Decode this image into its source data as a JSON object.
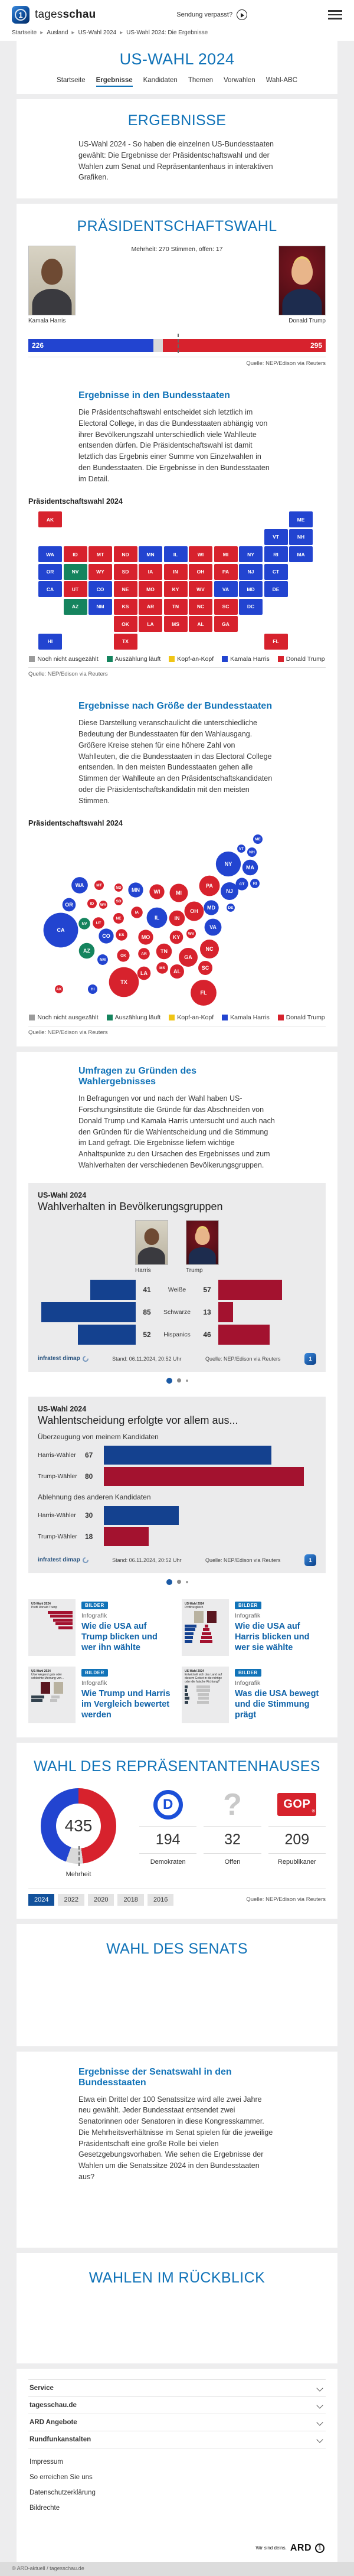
{
  "header": {
    "logo_light": "tages",
    "logo_bold": "schau",
    "broadcast_label": "Sendung verpasst?"
  },
  "breadcrumb": [
    "Startseite",
    "Ausland",
    "US-Wahl 2024",
    "US-Wahl 2024: Die Ergebnisse"
  ],
  "hub": {
    "title": "US-WAHL 2024",
    "tabs": [
      {
        "label": "Startseite",
        "active": false
      },
      {
        "label": "Ergebnisse",
        "active": true
      },
      {
        "label": "Kandidaten",
        "active": false
      },
      {
        "label": "Themen",
        "active": false
      },
      {
        "label": "Vorwahlen",
        "active": false
      },
      {
        "label": "Wahl-ABC",
        "active": false
      }
    ]
  },
  "intro": {
    "heading": "ERGEBNISSE",
    "text": "US-Wahl 2024 - So haben die einzelnen US-Bundesstaaten gewählt: Die Ergebnisse der Präsidentschaftswahl und der Wahlen zum Senat und Repräsentantenhaus in interaktiven Grafiken."
  },
  "sources": {
    "nep": "Quelle: NEP/Edison via Reuters",
    "stand": "Stand:  06.11.2024, 20:52 Uhr",
    "brand": "infratest dimap"
  },
  "colors": {
    "harris_blue": "#2244d0",
    "trump_red": "#d7222d",
    "counting_green": "#15845e",
    "tossup_yellow": "#f0c515",
    "uncounted_gray": "#9b9b9b",
    "open_gray": "#d9d9d9",
    "dark_blue": "#14418f",
    "dark_red": "#a3122f",
    "accent_blue": "#1173b8"
  },
  "president": {
    "heading": "PRÄSIDENTSCHAFTSWAHL",
    "majority_note": "Mehrheit: 270 Stimmen, offen: 17",
    "harris": {
      "name": "Kamala Harris",
      "votes": 226
    },
    "trump": {
      "name": "Donald Trump",
      "votes": 295
    },
    "open_votes": 17,
    "total_votes": 538,
    "majority": 270
  },
  "legend": [
    {
      "label": "Noch nicht ausgezählt",
      "color": "#9b9b9b"
    },
    {
      "label": "Auszählung läuft",
      "color": "#15845e"
    },
    {
      "label": "Kopf-an-Kopf",
      "color": "#f0c515"
    },
    {
      "label": "Kamala Harris",
      "color": "#2244d0"
    },
    {
      "label": "Donald Trump",
      "color": "#d7222d"
    }
  ],
  "states_section": {
    "heading": "Ergebnisse in den Bundesstaaten",
    "text": "Die Präsidentschaftswahl entscheidet sich letztlich im Electoral College, in das die Bundesstaaten abhängig von ihrer Bevölkerungszahl unterschiedlich viele Wahlleute entsenden dürfen. Die Präsidentschaftswahl ist damit letztlich das Ergebnis einer Summe von Einzelwahlen in den Bundesstaaten. Die Ergebnisse in den Bundesstaaten im Detail.",
    "chart_label": "Präsidentschaftswahl 2024"
  },
  "size_section": {
    "heading": "Ergebnisse nach Größe der Bundesstaaten",
    "text": "Diese Darstellung veranschaulicht die unterschiedliche Bedeutung der Bundesstaaten für den Wahlausgang. Größere Kreise stehen für eine höhere Zahl von Wahlleuten, die die Bundesstaaten in das Electoral College entsenden. In den meisten Bundesstaaten gehen alle Stimmen der Wahlleute an den Präsidentschaftskandidaten oder die Präsidentschaftskandidatin mit den meisten Stimmen.",
    "chart_label": "Präsidentschaftswahl 2024"
  },
  "states": [
    {
      "abbr": "AK",
      "party": "trump",
      "ev": 3
    },
    {
      "abbr": "AL",
      "party": "trump",
      "ev": 9
    },
    {
      "abbr": "AR",
      "party": "trump",
      "ev": 6
    },
    {
      "abbr": "AZ",
      "party": "counting",
      "ev": 11
    },
    {
      "abbr": "CA",
      "party": "harris",
      "ev": 54
    },
    {
      "abbr": "CO",
      "party": "harris",
      "ev": 10
    },
    {
      "abbr": "CT",
      "party": "harris",
      "ev": 7
    },
    {
      "abbr": "DC",
      "party": "harris",
      "ev": 3
    },
    {
      "abbr": "DE",
      "party": "harris",
      "ev": 3
    },
    {
      "abbr": "FL",
      "party": "trump",
      "ev": 30
    },
    {
      "abbr": "GA",
      "party": "trump",
      "ev": 16
    },
    {
      "abbr": "HI",
      "party": "harris",
      "ev": 4
    },
    {
      "abbr": "IA",
      "party": "trump",
      "ev": 6
    },
    {
      "abbr": "ID",
      "party": "trump",
      "ev": 4
    },
    {
      "abbr": "IL",
      "party": "harris",
      "ev": 19
    },
    {
      "abbr": "IN",
      "party": "trump",
      "ev": 11
    },
    {
      "abbr": "KS",
      "party": "trump",
      "ev": 6
    },
    {
      "abbr": "KY",
      "party": "trump",
      "ev": 8
    },
    {
      "abbr": "LA",
      "party": "trump",
      "ev": 8
    },
    {
      "abbr": "MA",
      "party": "harris",
      "ev": 11
    },
    {
      "abbr": "MD",
      "party": "harris",
      "ev": 10
    },
    {
      "abbr": "ME",
      "party": "harris",
      "ev": 4
    },
    {
      "abbr": "MI",
      "party": "trump",
      "ev": 15
    },
    {
      "abbr": "MN",
      "party": "harris",
      "ev": 10
    },
    {
      "abbr": "MO",
      "party": "trump",
      "ev": 10
    },
    {
      "abbr": "MS",
      "party": "trump",
      "ev": 6
    },
    {
      "abbr": "MT",
      "party": "trump",
      "ev": 4
    },
    {
      "abbr": "NC",
      "party": "trump",
      "ev": 16
    },
    {
      "abbr": "ND",
      "party": "trump",
      "ev": 3
    },
    {
      "abbr": "NE",
      "party": "trump",
      "ev": 5
    },
    {
      "abbr": "NH",
      "party": "harris",
      "ev": 4
    },
    {
      "abbr": "NJ",
      "party": "harris",
      "ev": 14
    },
    {
      "abbr": "NM",
      "party": "harris",
      "ev": 5
    },
    {
      "abbr": "NV",
      "party": "counting",
      "ev": 6
    },
    {
      "abbr": "NY",
      "party": "harris",
      "ev": 28
    },
    {
      "abbr": "OH",
      "party": "trump",
      "ev": 17
    },
    {
      "abbr": "OK",
      "party": "trump",
      "ev": 7
    },
    {
      "abbr": "OR",
      "party": "harris",
      "ev": 8
    },
    {
      "abbr": "PA",
      "party": "trump",
      "ev": 19
    },
    {
      "abbr": "RI",
      "party": "harris",
      "ev": 4
    },
    {
      "abbr": "SC",
      "party": "trump",
      "ev": 9
    },
    {
      "abbr": "SD",
      "party": "trump",
      "ev": 3
    },
    {
      "abbr": "TN",
      "party": "trump",
      "ev": 11
    },
    {
      "abbr": "TX",
      "party": "trump",
      "ev": 40
    },
    {
      "abbr": "UT",
      "party": "trump",
      "ev": 6
    },
    {
      "abbr": "VA",
      "party": "harris",
      "ev": 13
    },
    {
      "abbr": "VT",
      "party": "harris",
      "ev": 3
    },
    {
      "abbr": "WA",
      "party": "harris",
      "ev": 12
    },
    {
      "abbr": "WI",
      "party": "trump",
      "ev": 10
    },
    {
      "abbr": "WV",
      "party": "trump",
      "ev": 4
    },
    {
      "abbr": "WY",
      "party": "trump",
      "ev": 3
    }
  ],
  "polls": {
    "heading": "Umfragen zu Gründen des Wahlergebnisses",
    "text": "In Befragungen vor und nach der Wahl haben US-Forschungsinstitute die Gründe für das Abschneiden von Donald Trump und Kamala Harris untersucht und auch nach den Gründen für die Wahlentscheidung und die Stimmung im Land gefragt. Die Ergebnisse liefern wichtige Anhaltspunkte zu den Ursachen des Ergebnisses und zum Wahlverhalten der verschiedenen Bevölkerungsgruppen.",
    "demographics": {
      "kicker": "US-Wahl 2024",
      "title": "Wahlverhalten in Bevölkerungsgruppen",
      "harris_label": "Harris",
      "trump_label": "Trump",
      "rows": [
        {
          "group": "Weiße",
          "harris": 41,
          "trump": 57
        },
        {
          "group": "Schwarze",
          "harris": 85,
          "trump": 13
        },
        {
          "group": "Hispanics",
          "harris": 52,
          "trump": 46
        }
      ]
    },
    "conviction": {
      "kicker": "US-Wahl 2024",
      "title": "Wahlentscheidung erfolgte vor allem aus...",
      "groups": [
        {
          "heading": "Überzeugung von meinem Kandidaten",
          "rows": [
            {
              "label": "Harris-Wähler",
              "value": 67,
              "color": "#14418f"
            },
            {
              "label": "Trump-Wähler",
              "value": 80,
              "color": "#a3122f"
            }
          ]
        },
        {
          "heading": "Ablehnung des anderen Kandidaten",
          "rows": [
            {
              "label": "Harris-Wähler",
              "value": 30,
              "color": "#14418f"
            },
            {
              "label": "Trump-Wähler",
              "value": 18,
              "color": "#a3122f"
            }
          ]
        }
      ]
    }
  },
  "teasers": [
    {
      "badge": "BILDER",
      "kicker": "Infografik",
      "title": "Wie die USA auf Trump blicken und wer ihn wählte",
      "thumb_kicker": "US-Wahl 2024",
      "thumb_title": "Profil Donald Trump",
      "thumb_type": "red-bars"
    },
    {
      "badge": "BILDER",
      "kicker": "Infografik",
      "title": "Wie die USA auf Harris blicken und wer sie wählte",
      "thumb_kicker": "US-Wahl 2024",
      "thumb_title": "Profilvergleich",
      "thumb_type": "duo"
    },
    {
      "badge": "BILDER",
      "kicker": "Infografik",
      "title": "Wie Trump und Harris im Vergleich bewertet werden",
      "thumb_kicker": "US-Wahl 2024",
      "thumb_title": "Überwiegend gute oder schlechte Meinung von...",
      "thumb_type": "compare"
    },
    {
      "badge": "BILDER",
      "kicker": "Infografik",
      "title": "Was die USA bewegt und die Stimmung prägt",
      "thumb_kicker": "US-Wahl 2024",
      "thumb_title": "Entwickelt sich das Land auf diesem Gebiet in die richtige oder die falsche Richtung?",
      "thumb_type": "mood"
    }
  ],
  "house": {
    "heading": "WAHL DES REPRÄSENTANTENHAUSES",
    "total": 435,
    "total_label": "Mehrheit",
    "seats": [
      {
        "key": "dem",
        "value": 194,
        "label": "Demokraten"
      },
      {
        "key": "open",
        "value": 32,
        "label": "Offen"
      },
      {
        "key": "gop",
        "value": 209,
        "label": "Republikaner"
      }
    ],
    "years": [
      "2024",
      "2022",
      "2020",
      "2018",
      "2016"
    ],
    "active_year": "2024"
  },
  "senate": {
    "heading": "WAHL DES SENATS"
  },
  "senate_states": {
    "heading": "Ergebnisse der Senatswahl in den Bundesstaaten",
    "text": "Etwa ein Drittel der 100 Senatssitze wird alle zwei Jahre neu gewählt. Jeder Bundesstaat entsendet zwei Senatorinnen oder Senatoren in diese Kongresskammer. Die Mehrheitsverhältnisse im Senat spielen für die jeweilige Präsidentschaft eine große Rolle bei vielen Gesetzgebungsvorhaben. Wie sehen die Ergebnisse der Wahlen um die Senatssitze 2024 in den Bundesstaaten aus?"
  },
  "review": {
    "heading": "WAHLEN IM RÜCKBLICK"
  },
  "footer": {
    "accordions": [
      "Service",
      "tagesschau.de",
      "ARD Angebote",
      "Rundfunkanstalten"
    ],
    "links": [
      "Impressum",
      "So erreichen Sie uns",
      "Datenschutzerklärung",
      "Bildrechte"
    ],
    "ard_claim": "Wir sind deins.",
    "ard_brand": "ARD",
    "copyright": "© ARD-aktuell / tagesschau.de"
  }
}
